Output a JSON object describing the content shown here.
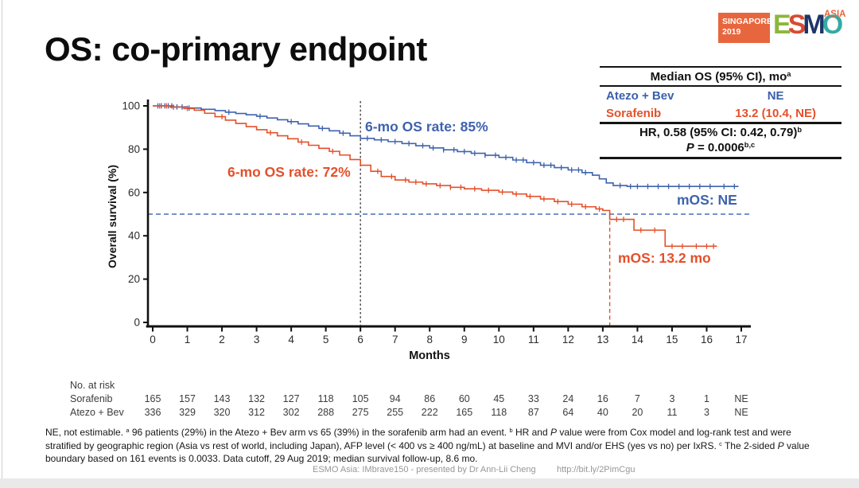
{
  "slide": {
    "title": "OS: co-primary endpoint",
    "footer": {
      "credit": "ESMO Asia: IMbrave150 - presented by Dr Ann-Lii Cheng",
      "link": "http://bit.ly/2PimCgu"
    }
  },
  "logo": {
    "venue_line1": "SINGAPORE",
    "venue_line2": "2019",
    "box_color": "#e8663e",
    "letters": [
      {
        "ch": "E",
        "color": "#8db63c"
      },
      {
        "ch": "S",
        "color": "#d94a32"
      },
      {
        "ch": "M",
        "color": "#1e3668"
      },
      {
        "ch": "O",
        "color": "#35aaa3"
      }
    ],
    "region": "ASIA",
    "region_color": "#e8663e"
  },
  "summary_table": {
    "header_segments": [
      {
        "t": "Median OS (95% CI), mo"
      },
      {
        "t": "a",
        "sup": true
      }
    ],
    "rows": [
      {
        "name": "Atezo + Bev",
        "value": "NE",
        "color": "#3a5fac"
      },
      {
        "name": "Sorafenib",
        "value": "13.2 (10.4, NE)",
        "color": "#e4502a"
      }
    ],
    "hr_segments": [
      {
        "t": "HR, 0.58 (95% CI: 0.42, 0.79)"
      },
      {
        "t": "b",
        "sup": true
      }
    ],
    "p_segments": [
      {
        "t": "P",
        "i": true
      },
      {
        "t": " = 0.0006"
      },
      {
        "t": "b,c",
        "sup": true
      }
    ]
  },
  "chart_data": {
    "type": "line",
    "subtype": "kaplan-meier",
    "title": "OS: co-primary endpoint",
    "xlabel": "Months",
    "ylabel": "Overall survival (%)",
    "xlim": [
      0,
      17
    ],
    "ylim": [
      0,
      100
    ],
    "x_ticks": [
      0,
      1,
      2,
      3,
      4,
      5,
      6,
      7,
      8,
      9,
      10,
      11,
      12,
      13,
      14,
      15,
      16,
      17
    ],
    "y_ticks": [
      0,
      20,
      40,
      60,
      80,
      100
    ],
    "grid": false,
    "series": [
      {
        "name": "Atezo + Bev",
        "color": "#3f63ad",
        "six_mo_label": "6-mo OS rate: 85%",
        "median_label": "mOS: NE",
        "median_months": null,
        "points": [
          [
            0,
            100
          ],
          [
            0.6,
            99.5
          ],
          [
            1.0,
            99
          ],
          [
            1.4,
            98.4
          ],
          [
            1.8,
            97.8
          ],
          [
            2.1,
            97.1
          ],
          [
            2.4,
            96.5
          ],
          [
            2.7,
            95.9
          ],
          [
            3.0,
            95.2
          ],
          [
            3.3,
            94.4
          ],
          [
            3.6,
            93.6
          ],
          [
            3.9,
            92.7
          ],
          [
            4.2,
            91.7
          ],
          [
            4.5,
            90.7
          ],
          [
            4.8,
            89.6
          ],
          [
            5.1,
            88.5
          ],
          [
            5.4,
            87.4
          ],
          [
            5.7,
            86.2
          ],
          [
            6.0,
            85.0
          ],
          [
            6.4,
            84.3
          ],
          [
            6.8,
            83.5
          ],
          [
            7.2,
            82.6
          ],
          [
            7.6,
            81.6
          ],
          [
            8.0,
            80.6
          ],
          [
            8.4,
            79.7
          ],
          [
            8.8,
            78.9
          ],
          [
            9.2,
            78.1
          ],
          [
            9.6,
            77.2
          ],
          [
            10.0,
            76.2
          ],
          [
            10.4,
            75.0
          ],
          [
            10.8,
            73.8
          ],
          [
            11.2,
            72.6
          ],
          [
            11.6,
            71.5
          ],
          [
            12.0,
            70.4
          ],
          [
            12.4,
            69.2
          ],
          [
            12.7,
            68.0
          ],
          [
            12.9,
            66.3
          ],
          [
            13.1,
            64.4
          ],
          [
            13.3,
            63.2
          ],
          [
            13.7,
            62.8
          ],
          [
            16.9,
            62.5
          ]
        ],
        "censor_marks": [
          0.15,
          0.25,
          0.35,
          0.45,
          0.55,
          0.7,
          0.85,
          1.05,
          2.2,
          3.1,
          4.0,
          4.9,
          5.5,
          6.2,
          6.6,
          7.0,
          7.4,
          7.8,
          8.1,
          8.4,
          8.7,
          9.0,
          9.3,
          9.6,
          9.9,
          10.2,
          10.5,
          10.7,
          11.0,
          11.3,
          11.5,
          11.8,
          12.1,
          12.3,
          12.5,
          13.5,
          13.8,
          14.0,
          14.3,
          14.6,
          14.9,
          15.2,
          15.5,
          15.8,
          16.1,
          16.5,
          16.8
        ]
      },
      {
        "name": "Sorafenib",
        "color": "#e4502a",
        "six_mo_label": "6-mo OS rate: 72%",
        "median_label": "mOS: 13.2 mo",
        "median_months": 13.2,
        "points": [
          [
            0,
            100
          ],
          [
            0.5,
            99.4
          ],
          [
            0.9,
            98.8
          ],
          [
            1.2,
            98.0
          ],
          [
            1.5,
            96.6
          ],
          [
            1.8,
            95.0
          ],
          [
            2.1,
            93.4
          ],
          [
            2.4,
            91.9
          ],
          [
            2.7,
            90.4
          ],
          [
            3.0,
            89.0
          ],
          [
            3.3,
            87.6
          ],
          [
            3.6,
            86.2
          ],
          [
            3.9,
            84.8
          ],
          [
            4.2,
            83.3
          ],
          [
            4.5,
            81.8
          ],
          [
            4.8,
            80.4
          ],
          [
            5.1,
            79.0
          ],
          [
            5.4,
            77.3
          ],
          [
            5.7,
            75.2
          ],
          [
            6.0,
            72.6
          ],
          [
            6.3,
            69.8
          ],
          [
            6.6,
            67.4
          ],
          [
            7.0,
            65.8
          ],
          [
            7.4,
            64.8
          ],
          [
            7.8,
            64.0
          ],
          [
            8.2,
            63.2
          ],
          [
            8.6,
            62.4
          ],
          [
            9.0,
            61.7
          ],
          [
            9.5,
            61.0
          ],
          [
            10.0,
            60.2
          ],
          [
            10.4,
            59.3
          ],
          [
            10.8,
            58.2
          ],
          [
            11.2,
            57.0
          ],
          [
            11.6,
            55.8
          ],
          [
            12.0,
            54.6
          ],
          [
            12.4,
            53.4
          ],
          [
            12.8,
            52.4
          ],
          [
            13.0,
            51.7
          ],
          [
            13.2,
            47.6
          ],
          [
            13.9,
            42.6
          ],
          [
            14.8,
            35.2
          ],
          [
            16.3,
            35.2
          ]
        ],
        "censor_marks": [
          0.2,
          0.4,
          0.6,
          1.0,
          2.0,
          3.4,
          4.3,
          5.2,
          6.5,
          6.9,
          7.3,
          7.6,
          7.9,
          8.3,
          8.6,
          8.9,
          9.3,
          9.7,
          10.1,
          10.5,
          10.9,
          11.3,
          11.7,
          12.1,
          12.5,
          12.9,
          13.4,
          13.6,
          14.1,
          14.5,
          15.0,
          15.3,
          15.7,
          16.0,
          16.2
        ]
      }
    ],
    "reference_lines": [
      {
        "type": "vline",
        "x": 6,
        "style": "dotted",
        "color": "#222222"
      },
      {
        "type": "hline",
        "y": 50,
        "style": "dashed",
        "color": "#4a6fb5",
        "x_end": 17.25
      },
      {
        "type": "vline",
        "x": 13.2,
        "style": "dashed",
        "color": "#e4502a",
        "y_top": 50
      }
    ]
  },
  "at_risk": {
    "label": "No. at risk",
    "rows": [
      {
        "name": "Sorafenib",
        "values": [
          "165",
          "157",
          "143",
          "132",
          "127",
          "118",
          "105",
          "94",
          "86",
          "60",
          "45",
          "33",
          "24",
          "16",
          "7",
          "3",
          "1",
          "NE"
        ]
      },
      {
        "name": "Atezo + Bev",
        "values": [
          "336",
          "329",
          "320",
          "312",
          "302",
          "288",
          "275",
          "255",
          "222",
          "165",
          "118",
          "87",
          "64",
          "40",
          "20",
          "11",
          "3",
          "NE"
        ]
      }
    ]
  },
  "footnote_segments": [
    {
      "t": "NE, not estimable. "
    },
    {
      "t": "a",
      "sup": true
    },
    {
      "t": " 96 patients (29%) in the Atezo + Bev arm vs 65 (39%) in the sorafenib arm had an event. "
    },
    {
      "t": "b",
      "sup": true
    },
    {
      "t": " HR and "
    },
    {
      "t": "P",
      "i": true
    },
    {
      "t": " value were from Cox model and log-rank test and were stratified by geographic region (Asia vs rest of world, including Japan), AFP level (< 400 vs ≥ 400 ng/mL) at baseline and MVI and/or EHS (yes vs no) per IxRS. "
    },
    {
      "t": "c",
      "sup": true
    },
    {
      "t": " The 2-sided "
    },
    {
      "t": "P",
      "i": true
    },
    {
      "t": " value boundary based on 161 events is 0.0033. Data cutoff, 29 Aug 2019; median survival follow-up, 8.6 mo."
    }
  ]
}
